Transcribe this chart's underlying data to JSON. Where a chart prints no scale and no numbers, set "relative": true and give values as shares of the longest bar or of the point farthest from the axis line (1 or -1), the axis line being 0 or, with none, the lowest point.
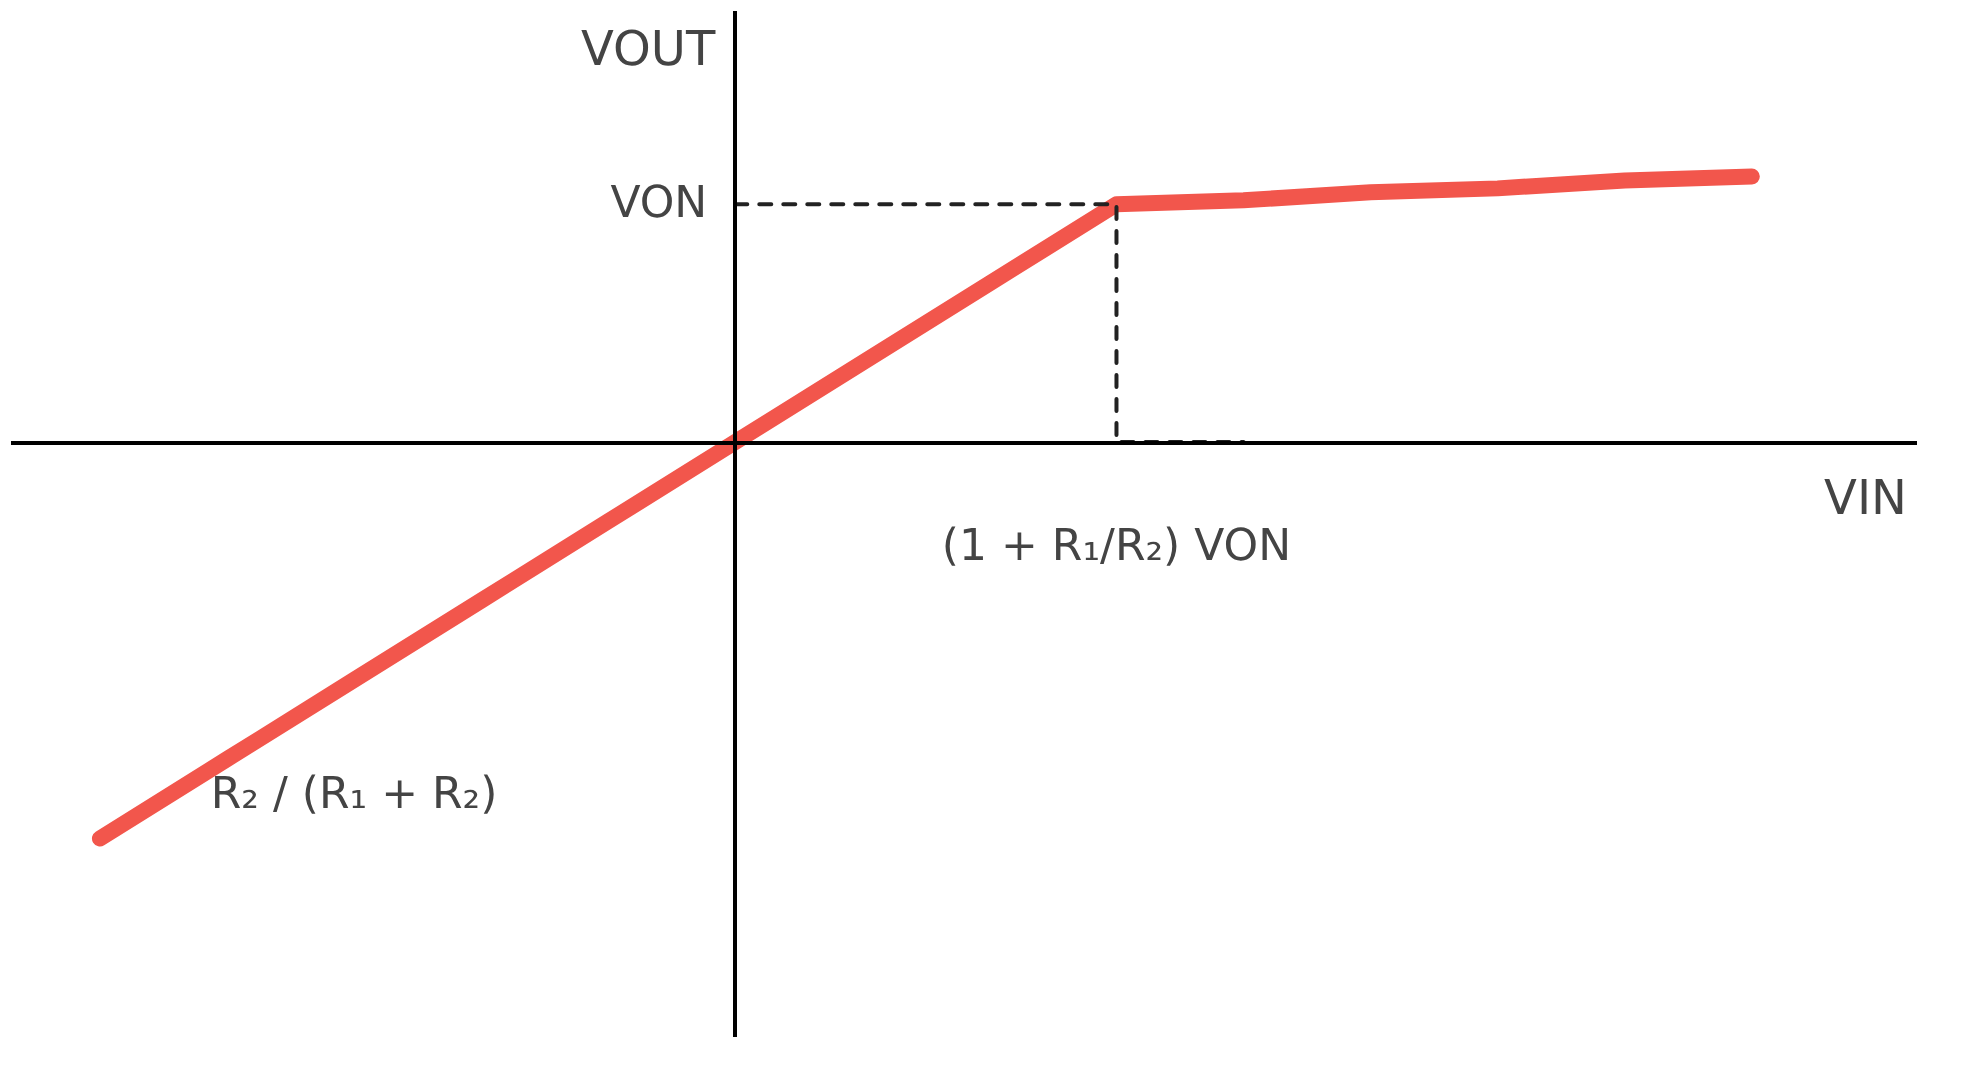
{
  "chart_data": {
    "type": "line",
    "relative": true,
    "xlabel": "VIN",
    "ylabel": "VOUT",
    "grid": false,
    "categories": [
      null,
      null,
      null,
      null,
      null,
      null,
      null,
      null,
      null,
      null,
      null,
      null,
      null,
      null
    ],
    "series": [
      {
        "color": "#f2564c",
        "values": [
          -1,
          -0.8,
          -0.6,
          -0.4,
          -0.2,
          0,
          0.2,
          0.4,
          0.6,
          0.61,
          0.63,
          0.64,
          0.66,
          0.67
        ]
      },
      {
        "color": "#222222",
        "type": "step",
        "line_style": "dashed",
        "values": [
          null,
          null,
          null,
          null,
          null,
          0.6,
          0.6,
          0.6,
          0.6,
          0,
          null,
          null,
          null,
          null
        ]
      }
    ],
    "annotations": [
      "VON",
      "(1 + R₁/R₂) VON",
      "R₂ / (R₁ + R₂)"
    ]
  }
}
